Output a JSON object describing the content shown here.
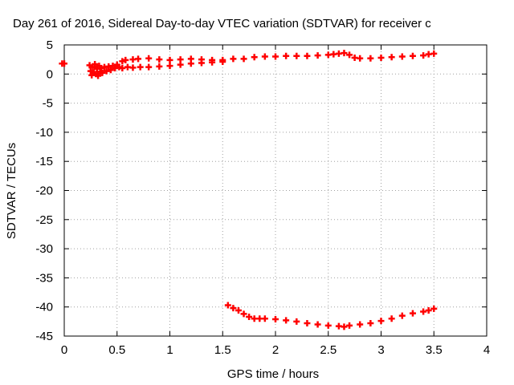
{
  "chart_data": {
    "type": "scatter",
    "title": "Day 261 of 2016, Sidereal Day-to-day VTEC variation (SDTVAR) for receiver c",
    "xlabel": "GPS time / hours",
    "ylabel": "SDTVAR / TECUs",
    "xlim": [
      0,
      4
    ],
    "ylim": [
      -45,
      5
    ],
    "x_ticks": [
      0,
      0.5,
      1,
      1.5,
      2,
      2.5,
      3,
      3.5,
      4
    ],
    "x_tick_labels": [
      "0",
      "0.5",
      "1",
      "1.5",
      "2",
      "2.5",
      "3",
      "3.5",
      "4"
    ],
    "y_ticks": [
      5,
      0,
      -5,
      -10,
      -15,
      -20,
      -25,
      -30,
      -35,
      -40,
      -45
    ],
    "y_tick_labels": [
      "5",
      "0",
      "-5",
      "-10",
      "-15",
      "-20",
      "-25",
      "-30",
      "-35",
      "-40",
      "-45"
    ],
    "grid": true,
    "marker": "cross",
    "colors": {
      "series": "#ff0000",
      "grid": "#a0a0a0",
      "axis": "#000000",
      "background": "#ffffff"
    },
    "series": [
      {
        "points": [
          [
            -0.02,
            1.8
          ],
          [
            0.0,
            1.8
          ],
          [
            0.24,
            1.5
          ],
          [
            0.25,
            0.5
          ],
          [
            0.26,
            -0.2
          ],
          [
            0.27,
            1.2
          ],
          [
            0.28,
            0.2
          ],
          [
            0.29,
            1.7
          ],
          [
            0.3,
            0.0
          ],
          [
            0.31,
            0.9
          ],
          [
            0.32,
            -0.3
          ],
          [
            0.33,
            1.4
          ],
          [
            0.34,
            0.4
          ],
          [
            0.35,
            1.0
          ],
          [
            0.36,
            0.2
          ],
          [
            0.38,
            1.2
          ],
          [
            0.4,
            0.5
          ],
          [
            0.42,
            1.3
          ],
          [
            0.44,
            0.7
          ],
          [
            0.46,
            1.4
          ],
          [
            0.48,
            1.0
          ],
          [
            0.5,
            1.6
          ],
          [
            0.52,
            1.2
          ],
          [
            0.55,
            2.2
          ],
          [
            0.55,
            1.0
          ],
          [
            0.58,
            2.4
          ],
          [
            0.6,
            1.2
          ],
          [
            0.65,
            2.5
          ],
          [
            0.65,
            1.1
          ],
          [
            0.7,
            2.6
          ],
          [
            0.72,
            1.2
          ],
          [
            0.8,
            2.7
          ],
          [
            0.8,
            1.2
          ],
          [
            0.9,
            2.5
          ],
          [
            0.9,
            1.3
          ],
          [
            1.0,
            2.4
          ],
          [
            1.0,
            1.4
          ],
          [
            1.1,
            2.5
          ],
          [
            1.1,
            1.6
          ],
          [
            1.2,
            2.6
          ],
          [
            1.2,
            1.8
          ],
          [
            1.3,
            2.5
          ],
          [
            1.3,
            1.9
          ],
          [
            1.4,
            2.4
          ],
          [
            1.4,
            2.0
          ],
          [
            1.5,
            2.4
          ],
          [
            1.5,
            2.1
          ],
          [
            1.6,
            2.6
          ],
          [
            1.7,
            2.6
          ],
          [
            1.8,
            2.9
          ],
          [
            1.9,
            3.0
          ],
          [
            2.0,
            3.0
          ],
          [
            2.1,
            3.1
          ],
          [
            2.2,
            3.1
          ],
          [
            2.3,
            3.1
          ],
          [
            2.4,
            3.2
          ],
          [
            2.5,
            3.3
          ],
          [
            2.55,
            3.4
          ],
          [
            2.6,
            3.5
          ],
          [
            2.65,
            3.6
          ],
          [
            2.7,
            3.3
          ],
          [
            2.75,
            2.8
          ],
          [
            2.8,
            2.7
          ],
          [
            2.9,
            2.7
          ],
          [
            3.0,
            2.8
          ],
          [
            3.1,
            2.9
          ],
          [
            3.2,
            3.0
          ],
          [
            3.3,
            3.1
          ],
          [
            3.4,
            3.2
          ],
          [
            3.45,
            3.4
          ],
          [
            3.5,
            3.5
          ]
        ]
      },
      {
        "points": [
          [
            1.55,
            -39.7
          ],
          [
            1.6,
            -40.2
          ],
          [
            1.65,
            -40.6
          ],
          [
            1.7,
            -41.2
          ],
          [
            1.75,
            -41.7
          ],
          [
            1.8,
            -42.0
          ],
          [
            1.85,
            -42.0
          ],
          [
            1.9,
            -42.0
          ],
          [
            2.0,
            -42.1
          ],
          [
            2.1,
            -42.3
          ],
          [
            2.2,
            -42.5
          ],
          [
            2.3,
            -42.8
          ],
          [
            2.4,
            -43.0
          ],
          [
            2.5,
            -43.2
          ],
          [
            2.6,
            -43.3
          ],
          [
            2.65,
            -43.4
          ],
          [
            2.7,
            -43.2
          ],
          [
            2.8,
            -43.0
          ],
          [
            2.9,
            -42.8
          ],
          [
            3.0,
            -42.4
          ],
          [
            3.1,
            -42.0
          ],
          [
            3.2,
            -41.5
          ],
          [
            3.3,
            -41.1
          ],
          [
            3.4,
            -40.8
          ],
          [
            3.45,
            -40.6
          ],
          [
            3.5,
            -40.3
          ]
        ]
      }
    ]
  }
}
